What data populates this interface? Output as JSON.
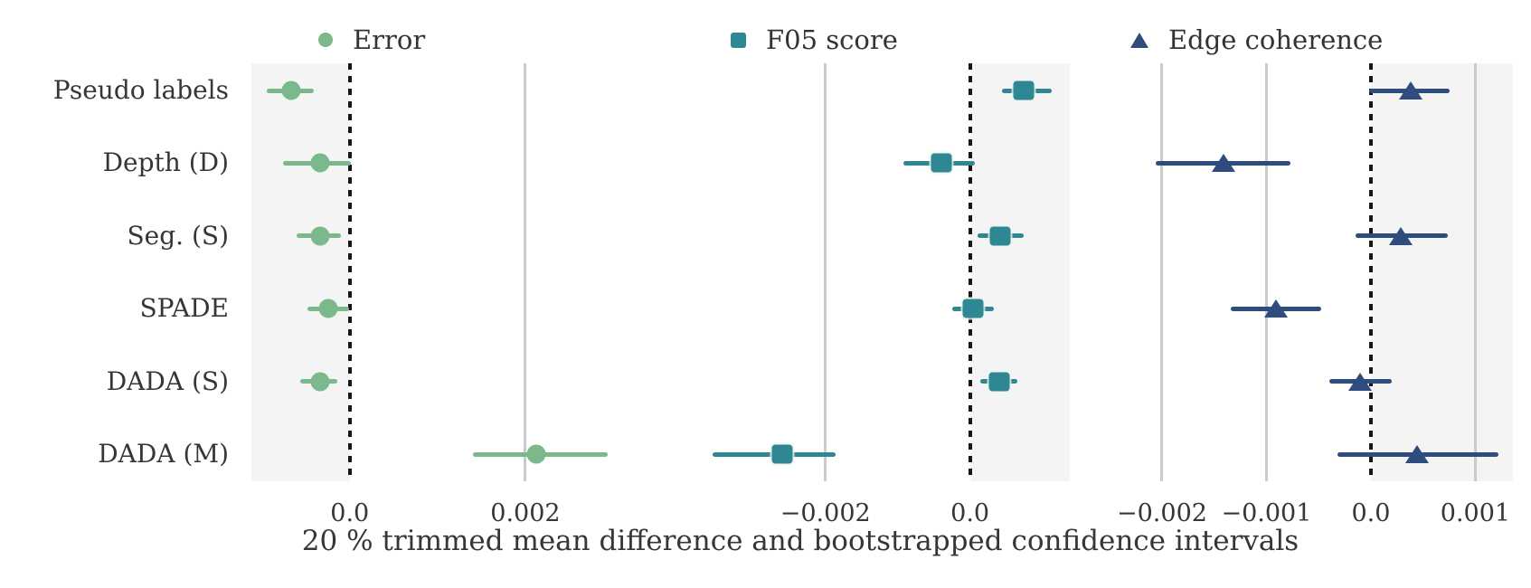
{
  "chart_data": {
    "type": "scatter",
    "subtype": "forest-plot-with-confidence-intervals",
    "orientation": "horizontal",
    "grid": true,
    "legend_position": "top",
    "xlabel": "20 % trimmed mean difference and bootstrapped confidence intervals",
    "categories": [
      "Pseudo labels",
      "Depth (D)",
      "Seg. (S)",
      "SPADE",
      "DADA (S)",
      "DADA (M)"
    ],
    "panels": [
      {
        "legend_label": "Error",
        "marker": "circle",
        "color": "#7bb98c",
        "xlim": [
          -0.00112,
          0.00336
        ],
        "shade": [
          -0.00112,
          0.0
        ],
        "ticks": [
          {
            "value": 0.0,
            "label": "0.0"
          },
          {
            "value": 0.002,
            "label": "0.002"
          }
        ],
        "points": [
          {
            "category": "Pseudo labels",
            "value": -0.00067,
            "ci": [
              -0.00095,
              -0.00041
            ]
          },
          {
            "category": "Depth (D)",
            "value": -0.00034,
            "ci": [
              -0.00076,
              1e-05
            ]
          },
          {
            "category": "Seg. (S)",
            "value": -0.00034,
            "ci": [
              -0.0006,
              -0.0001
            ]
          },
          {
            "category": "SPADE",
            "value": -0.00024,
            "ci": [
              -0.00048,
              -1e-05
            ]
          },
          {
            "category": "DADA (S)",
            "value": -0.00034,
            "ci": [
              -0.00056,
              -0.00014
            ]
          },
          {
            "category": "DADA (M)",
            "value": 0.00212,
            "ci": [
              0.0014,
              0.00294
            ]
          }
        ]
      },
      {
        "legend_label": "F05 score",
        "marker": "square",
        "color": "#2f8793",
        "xlim": [
          -0.00406,
          0.00138
        ],
        "shade": [
          0.0,
          0.00138
        ],
        "ticks": [
          {
            "value": -0.002,
            "label": "−0.002"
          },
          {
            "value": 0.0,
            "label": "0.0"
          }
        ],
        "points": [
          {
            "category": "Pseudo labels",
            "value": 0.00074,
            "ci": [
              0.00044,
              0.00113
            ]
          },
          {
            "category": "Depth (D)",
            "value": -0.0004,
            "ci": [
              -0.00092,
              7e-05
            ]
          },
          {
            "category": "Seg. (S)",
            "value": 0.00042,
            "ci": [
              0.00011,
              0.00074
            ]
          },
          {
            "category": "SPADE",
            "value": 4e-05,
            "ci": [
              -0.00025,
              0.00033
            ]
          },
          {
            "category": "DADA (S)",
            "value": 0.0004,
            "ci": [
              0.00014,
              0.00066
            ]
          },
          {
            "category": "DADA (M)",
            "value": -0.0026,
            "ci": [
              -0.00356,
              -0.00186
            ]
          }
        ]
      },
      {
        "legend_label": "Edge coherence",
        "marker": "triangle",
        "color": "#2e4d7e",
        "xlim": [
          -0.00258,
          0.00136
        ],
        "shade": [
          0.0,
          0.00136
        ],
        "ticks": [
          {
            "value": -0.002,
            "label": "−0.002"
          },
          {
            "value": -0.001,
            "label": "−0.001"
          },
          {
            "value": 0.0,
            "label": "0.0"
          },
          {
            "value": 0.001,
            "label": "0.001"
          }
        ],
        "points": [
          {
            "category": "Pseudo labels",
            "value": 0.00038,
            "ci": [
              -2e-05,
              0.00075
            ]
          },
          {
            "category": "Depth (D)",
            "value": -0.00141,
            "ci": [
              -0.00206,
              -0.00077
            ]
          },
          {
            "category": "Seg. (S)",
            "value": 0.00029,
            "ci": [
              -0.00015,
              0.00074
            ]
          },
          {
            "category": "SPADE",
            "value": -0.00091,
            "ci": [
              -0.00134,
              -0.00048
            ]
          },
          {
            "category": "DADA (S)",
            "value": -0.0001,
            "ci": [
              -0.0004,
              0.0002
            ]
          },
          {
            "category": "DADA (M)",
            "value": 0.00044,
            "ci": [
              -0.00032,
              0.00122
            ]
          }
        ]
      }
    ],
    "styles": {
      "shaded_band_color": "#f4f4f4",
      "gridline_color": "#cbcbcb",
      "zero_line_color": "#161616",
      "text_color": "#363636"
    }
  }
}
